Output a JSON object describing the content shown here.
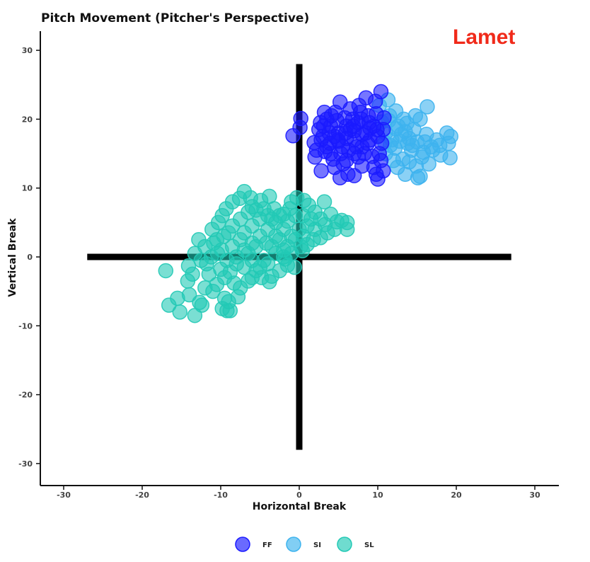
{
  "chart_data": {
    "type": "scatter",
    "title": "Pitch Movement (Pitcher's Perspective)",
    "annotation": "Lamet",
    "xlabel": "Horizontal Break",
    "ylabel": "Vertical Break",
    "xlim": [
      -33,
      33
    ],
    "ylim": [
      -33,
      33
    ],
    "xticks": [
      -30,
      -20,
      -10,
      0,
      10,
      20,
      30
    ],
    "yticks": [
      -30,
      -20,
      -10,
      0,
      10,
      20,
      30
    ],
    "grid": false,
    "legend_position": "bottom",
    "reference_lines": [
      {
        "orientation": "horizontal",
        "value": 0,
        "from": -27,
        "to": 27,
        "color": "#000000"
      },
      {
        "orientation": "vertical",
        "value": 0,
        "from": -28,
        "to": 28,
        "color": "#000000"
      }
    ],
    "series": [
      {
        "name": "FF",
        "color": "#1a1aff",
        "points": [
          [
            0.2,
            20.1
          ],
          [
            0.1,
            18.8
          ],
          [
            -0.8,
            17.6
          ],
          [
            1.9,
            16.6
          ],
          [
            2.5,
            18.5
          ],
          [
            3,
            17.5
          ],
          [
            3.5,
            16
          ],
          [
            4,
            15
          ],
          [
            2,
            14.5
          ],
          [
            2.8,
            12.5
          ],
          [
            4.5,
            13
          ],
          [
            5.2,
            11.5
          ],
          [
            5.6,
            13.5
          ],
          [
            6.2,
            12
          ],
          [
            7,
            11.8
          ],
          [
            7.5,
            14.5
          ],
          [
            8,
            13.2
          ],
          [
            9.5,
            13
          ],
          [
            9.8,
            12
          ],
          [
            10,
            11.3
          ],
          [
            10.7,
            12.5
          ],
          [
            10.4,
            24
          ],
          [
            9.7,
            22.6
          ],
          [
            8.5,
            23.1
          ],
          [
            7.6,
            22
          ],
          [
            6.5,
            21.5
          ],
          [
            5.2,
            22.5
          ],
          [
            4.6,
            21
          ],
          [
            3.5,
            20
          ],
          [
            2.7,
            19.5
          ],
          [
            3.2,
            21
          ],
          [
            4,
            19
          ],
          [
            4.5,
            17.5
          ],
          [
            5,
            18
          ],
          [
            5.5,
            16
          ],
          [
            6,
            17.2
          ],
          [
            6.5,
            18.5
          ],
          [
            7,
            17
          ],
          [
            7.5,
            19.5
          ],
          [
            8,
            16
          ],
          [
            8.5,
            18
          ],
          [
            9,
            17
          ],
          [
            9.5,
            19
          ],
          [
            10,
            17.5
          ],
          [
            10.5,
            16.5
          ],
          [
            10.7,
            18.5
          ],
          [
            10.8,
            20.2
          ],
          [
            9.8,
            20.8
          ],
          [
            8.8,
            20.5
          ],
          [
            7.8,
            21
          ],
          [
            6.8,
            20
          ],
          [
            5.8,
            20.2
          ],
          [
            4.8,
            19.8
          ],
          [
            3.8,
            18
          ],
          [
            2.8,
            17
          ],
          [
            3.3,
            15.3
          ],
          [
            4.3,
            14.2
          ],
          [
            5.3,
            15
          ],
          [
            6.3,
            15.5
          ],
          [
            7.3,
            16
          ],
          [
            8.3,
            15
          ],
          [
            9.3,
            14.6
          ],
          [
            6,
            14
          ],
          [
            7,
            15
          ],
          [
            8,
            17.8
          ],
          [
            9,
            18.7
          ],
          [
            5,
            16.8
          ],
          [
            6,
            19
          ],
          [
            7,
            18.3
          ],
          [
            8.7,
            16.5
          ],
          [
            3.9,
            16.5
          ],
          [
            4.9,
            17
          ],
          [
            5.9,
            18
          ],
          [
            6.9,
            19
          ],
          [
            7.9,
            20
          ],
          [
            8.9,
            19.5
          ],
          [
            9.9,
            18.5
          ],
          [
            2.2,
            15.5
          ],
          [
            3.1,
            19
          ],
          [
            4.1,
            20.5
          ],
          [
            10.2,
            15
          ],
          [
            10.4,
            14
          ]
        ]
      },
      {
        "name": "SI",
        "color": "#3db3ee",
        "points": [
          [
            10.2,
            22
          ],
          [
            11.3,
            22.8
          ],
          [
            12.3,
            21.2
          ],
          [
            13.3,
            20
          ],
          [
            14.8,
            20.5
          ],
          [
            15.4,
            20
          ],
          [
            16.3,
            21.8
          ],
          [
            14.6,
            18.5
          ],
          [
            13.5,
            18.2
          ],
          [
            12.6,
            19
          ],
          [
            11.5,
            20.5
          ],
          [
            11,
            18
          ],
          [
            11.8,
            17
          ],
          [
            12.8,
            16.8
          ],
          [
            13.8,
            16.5
          ],
          [
            14.3,
            15.5
          ],
          [
            15,
            16.7
          ],
          [
            15.8,
            15.2
          ],
          [
            16.8,
            16
          ],
          [
            17.5,
            17
          ],
          [
            18.8,
            18
          ],
          [
            19.3,
            17.5
          ],
          [
            19,
            16.5
          ],
          [
            19.2,
            14.4
          ],
          [
            18,
            14.8
          ],
          [
            17,
            15.5
          ],
          [
            16.5,
            13.5
          ],
          [
            15.4,
            11.7
          ],
          [
            15.1,
            11.5
          ],
          [
            13.5,
            12
          ],
          [
            12.5,
            13
          ],
          [
            12,
            14
          ],
          [
            11,
            15
          ],
          [
            12.2,
            15.8
          ],
          [
            13.2,
            14.2
          ],
          [
            14,
            13.8
          ],
          [
            14.9,
            13.2
          ],
          [
            15.6,
            14.5
          ],
          [
            16.2,
            17.8
          ],
          [
            14,
            17.2
          ],
          [
            13,
            17.8
          ],
          [
            12.3,
            18.6
          ],
          [
            11.6,
            16.2
          ],
          [
            10.5,
            19.6
          ],
          [
            11.4,
            19.8
          ],
          [
            10.9,
            16.6
          ],
          [
            14.4,
            16.2
          ],
          [
            13.7,
            19.4
          ],
          [
            16,
            16.7
          ],
          [
            17.9,
            16.2
          ]
        ]
      },
      {
        "name": "SL",
        "color": "#22c9b5",
        "points": [
          [
            -17,
            -2
          ],
          [
            -16.6,
            -7
          ],
          [
            -15.5,
            -6
          ],
          [
            -15.2,
            -8
          ],
          [
            -14,
            -5.5
          ],
          [
            -13.3,
            -8.5
          ],
          [
            -12.7,
            -6.6
          ],
          [
            -12.4,
            -7
          ],
          [
            -14.2,
            -3.5
          ],
          [
            -13.6,
            -2.5
          ],
          [
            -14.1,
            -1.3
          ],
          [
            -13.3,
            0.5
          ],
          [
            -12.8,
            2.5
          ],
          [
            -12,
            1.5
          ],
          [
            -11.2,
            0
          ],
          [
            -11.5,
            -2.5
          ],
          [
            -12,
            -4.5
          ],
          [
            -11,
            -5
          ],
          [
            -10.5,
            -4
          ],
          [
            -9.8,
            -7.5
          ],
          [
            -9.2,
            -7.8
          ],
          [
            -8.8,
            -7.8
          ],
          [
            -9,
            -6.5
          ],
          [
            -9.5,
            -6
          ],
          [
            -9.6,
            3
          ],
          [
            -10.5,
            2.5
          ],
          [
            -11.1,
            4
          ],
          [
            -10.3,
            5
          ],
          [
            -9.8,
            6
          ],
          [
            -9.3,
            7
          ],
          [
            -8.5,
            8
          ],
          [
            -7.6,
            8.5
          ],
          [
            -7,
            9.5
          ],
          [
            -6.2,
            8.6
          ],
          [
            -6,
            7.3
          ],
          [
            -4.9,
            8.2
          ],
          [
            -3.8,
            8.8
          ],
          [
            -3.2,
            7
          ],
          [
            -2,
            6.2
          ],
          [
            -1.2,
            7
          ],
          [
            -1,
            8
          ],
          [
            -0.3,
            8.6
          ],
          [
            0.6,
            8.2
          ],
          [
            1.2,
            7.5
          ],
          [
            2,
            6.5
          ],
          [
            2.7,
            5.5
          ],
          [
            3.3,
            4.7
          ],
          [
            3.2,
            8
          ],
          [
            4,
            6.2
          ],
          [
            4.8,
            5.1
          ],
          [
            5.4,
            5.3
          ],
          [
            6.1,
            4
          ],
          [
            6.1,
            5
          ],
          [
            4.5,
            4
          ],
          [
            3.6,
            3.5
          ],
          [
            2.7,
            2.8
          ],
          [
            1.8,
            2.5
          ],
          [
            1,
            1.8
          ],
          [
            0.4,
            0.9
          ],
          [
            -0.6,
            -1.5
          ],
          [
            -1.5,
            -1.2
          ],
          [
            -2,
            0
          ],
          [
            -2.5,
            -2
          ],
          [
            -3.5,
            -2.8
          ],
          [
            -3.8,
            -3.6
          ],
          [
            -4.8,
            -3
          ],
          [
            -5.5,
            -2
          ],
          [
            -6,
            -3
          ],
          [
            -6.5,
            -3.5
          ],
          [
            -7.5,
            -4.5
          ],
          [
            -7.8,
            -5.8
          ],
          [
            -8.3,
            -3.8
          ],
          [
            -8.8,
            -2.2
          ],
          [
            -9.2,
            -0.5
          ],
          [
            -9.9,
            1
          ],
          [
            -10.4,
            0.5
          ],
          [
            -10.9,
            2
          ],
          [
            -8,
            0
          ],
          [
            -7,
            1
          ],
          [
            -6,
            2
          ],
          [
            -5,
            3
          ],
          [
            -4,
            4
          ],
          [
            -3,
            5
          ],
          [
            -2,
            4
          ],
          [
            -1,
            3
          ],
          [
            0,
            4
          ],
          [
            1,
            4.5
          ],
          [
            2,
            4
          ],
          [
            -7.5,
            2.5
          ],
          [
            -6.5,
            0.5
          ],
          [
            -5.5,
            1.5
          ],
          [
            -4.5,
            -0.5
          ],
          [
            -3.5,
            1.5
          ],
          [
            -2.5,
            2.5
          ],
          [
            -1.5,
            1.5
          ],
          [
            -0.5,
            2.5
          ],
          [
            0.5,
            3
          ],
          [
            -8.5,
            1.5
          ],
          [
            -9,
            3.5
          ],
          [
            -6,
            4.5
          ],
          [
            -5,
            5.5
          ],
          [
            -4,
            6
          ],
          [
            -3,
            3
          ],
          [
            -2,
            1
          ],
          [
            -1,
            0.5
          ],
          [
            -7,
            -1.5
          ],
          [
            -8,
            -1
          ],
          [
            -6,
            -0.5
          ],
          [
            -5,
            -1.5
          ],
          [
            -4,
            -1
          ],
          [
            -3,
            0.5
          ],
          [
            -8.5,
            4.5
          ],
          [
            -7.5,
            5.5
          ],
          [
            -6.5,
            6.5
          ],
          [
            -5.5,
            6.8
          ],
          [
            -4.5,
            7
          ],
          [
            -3.5,
            5.5
          ],
          [
            -2.5,
            6
          ],
          [
            -1.5,
            5.2
          ],
          [
            -0.5,
            6
          ],
          [
            0.5,
            6
          ],
          [
            1.5,
            5.5
          ],
          [
            -9.5,
            -3
          ],
          [
            -10,
            -1.8
          ],
          [
            -11.8,
            -1
          ],
          [
            -12.5,
            -0.5
          ],
          [
            -7,
            3.5
          ],
          [
            -4.2,
            2
          ],
          [
            -1.8,
            -0.3
          ],
          [
            0.2,
            1.5
          ]
        ]
      }
    ]
  }
}
